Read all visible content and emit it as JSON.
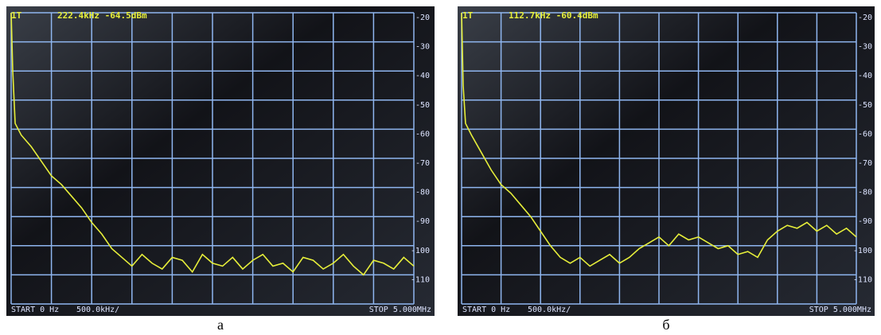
{
  "chart_data": [
    {
      "type": "line",
      "marker_label": "1T",
      "marker_readout": "222.4kHz -64.5dBm",
      "start_label": "START 0 Hz",
      "scale_label": "500.0kHz/",
      "stop_label": "STOP 5.000MHz",
      "caption": "а",
      "xlim": [
        0,
        5
      ],
      "ylim": [
        -120,
        -20
      ],
      "yticks": [
        -20,
        -30,
        -40,
        -50,
        -60,
        -70,
        -80,
        -90,
        -100,
        -110
      ],
      "grid": true,
      "x": [
        0,
        0.02,
        0.05,
        0.125,
        0.25,
        0.375,
        0.5,
        0.625,
        0.75,
        0.875,
        1.0,
        1.125,
        1.25,
        1.375,
        1.5,
        1.625,
        1.75,
        1.875,
        2.0,
        2.125,
        2.25,
        2.375,
        2.5,
        2.625,
        2.75,
        2.875,
        3.0,
        3.125,
        3.25,
        3.375,
        3.5,
        3.625,
        3.75,
        3.875,
        4.0,
        4.125,
        4.25,
        4.375,
        4.5,
        4.625,
        4.75,
        4.875,
        5.0
      ],
      "series": [
        {
          "color": "#e6ee3a",
          "values": [
            -20,
            -40,
            -58,
            -62,
            -66,
            -71,
            -76,
            -79,
            -83,
            -87,
            -92,
            -96,
            -101,
            -104,
            -107,
            -103,
            -106,
            -108,
            -104,
            -105,
            -109,
            -103,
            -106,
            -107,
            -104,
            -108,
            -105,
            -103,
            -107,
            -106,
            -109,
            -104,
            -105,
            -108,
            -106,
            -103,
            -107,
            -110,
            -105,
            -106,
            -108,
            -104,
            -107
          ]
        }
      ]
    },
    {
      "type": "line",
      "marker_label": "1T",
      "marker_readout": "112.7kHz -60.4dBm",
      "start_label": "START 0 Hz",
      "scale_label": "500.0kHz/",
      "stop_label": "STOP 5.000MHz",
      "caption": "б",
      "xlim": [
        0,
        5
      ],
      "ylim": [
        -120,
        -20
      ],
      "yticks": [
        -20,
        -30,
        -40,
        -50,
        -60,
        -70,
        -80,
        -90,
        -100,
        -110
      ],
      "grid": true,
      "x": [
        0,
        0.02,
        0.05,
        0.125,
        0.25,
        0.375,
        0.5,
        0.625,
        0.75,
        0.875,
        1.0,
        1.125,
        1.25,
        1.375,
        1.5,
        1.625,
        1.75,
        1.875,
        2.0,
        2.125,
        2.25,
        2.375,
        2.5,
        2.625,
        2.75,
        2.875,
        3.0,
        3.125,
        3.25,
        3.375,
        3.5,
        3.625,
        3.75,
        3.875,
        4.0,
        4.125,
        4.25,
        4.375,
        4.5,
        4.625,
        4.75,
        4.875,
        5.0
      ],
      "series": [
        {
          "color": "#e6ee3a",
          "values": [
            -20,
            -45,
            -58,
            -62,
            -68,
            -74,
            -79,
            -82,
            -86,
            -90,
            -95,
            -100,
            -104,
            -106,
            -104,
            -107,
            -105,
            -103,
            -106,
            -104,
            -101,
            -99,
            -97,
            -100,
            -96,
            -98,
            -97,
            -99,
            -101,
            -100,
            -103,
            -102,
            -104,
            -98,
            -95,
            -93,
            -94,
            -92,
            -95,
            -93,
            -96,
            -94,
            -97
          ]
        }
      ]
    }
  ]
}
